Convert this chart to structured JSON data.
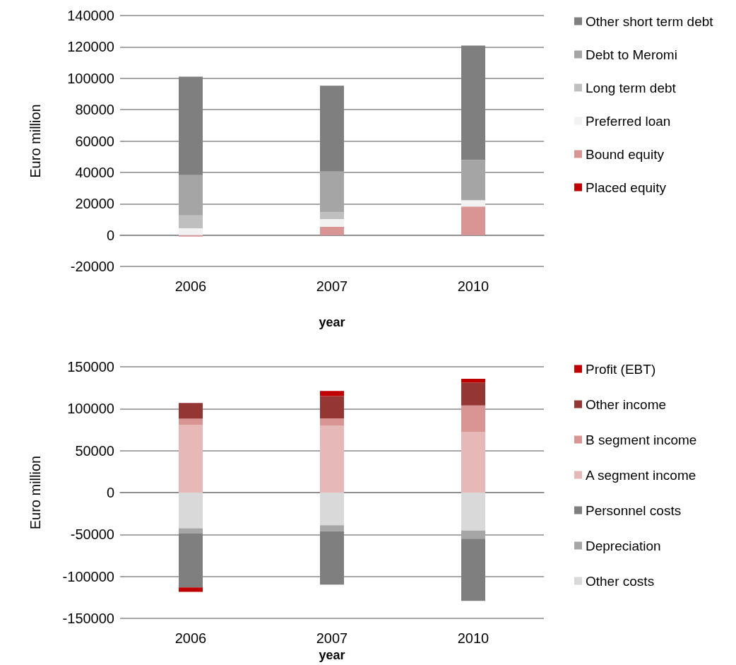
{
  "chart_data": [
    {
      "type": "bar",
      "stacked": true,
      "xlabel": "year",
      "ylabel": "Euro million",
      "categories": [
        "2006",
        "2007",
        "2010"
      ],
      "ylim": [
        -20000,
        140000
      ],
      "yticks": [
        -20000,
        0,
        20000,
        40000,
        60000,
        80000,
        100000,
        120000,
        140000
      ],
      "grid": "y",
      "legend": "right",
      "series": [
        {
          "name": "Placed equity",
          "color": "#c00000",
          "values": [
            0,
            0,
            0
          ]
        },
        {
          "name": "Bound equity",
          "color": "#d99594",
          "values": [
            -1000,
            5200,
            18200
          ]
        },
        {
          "name": "Preferred loan",
          "color": "#f2f2f2",
          "values": [
            4300,
            5000,
            4100
          ]
        },
        {
          "name": "Long term debt",
          "color": "#bfbfbf",
          "values": [
            8300,
            4400,
            0
          ]
        },
        {
          "name": "Debt to Meromi",
          "color": "#a5a5a5",
          "values": [
            25600,
            25900,
            25600
          ]
        },
        {
          "name": "Other short term debt",
          "color": "#7f7f7f",
          "values": [
            62800,
            54800,
            73000
          ]
        }
      ]
    },
    {
      "type": "bar",
      "stacked": true,
      "xlabel": "year",
      "ylabel": "Euro million",
      "categories": [
        "2006",
        "2007",
        "2010"
      ],
      "ylim": [
        -150000,
        150000
      ],
      "yticks": [
        -150000,
        -100000,
        -50000,
        0,
        50000,
        100000,
        150000
      ],
      "grid": "y",
      "legend": "right",
      "series": [
        {
          "name": "Other costs",
          "color": "#d9d9d9",
          "values": [
            -42500,
            -39000,
            -45200
          ]
        },
        {
          "name": "Depreciation",
          "color": "#a6a6a6",
          "values": [
            -5900,
            -7000,
            -9700
          ]
        },
        {
          "name": "Personnel costs",
          "color": "#7f7f7f",
          "values": [
            -64700,
            -63600,
            -74100
          ]
        },
        {
          "name": "A segment income",
          "color": "#e6b9b8",
          "values": [
            81000,
            80100,
            72500
          ]
        },
        {
          "name": "B segment income",
          "color": "#d99594",
          "values": [
            7100,
            8500,
            31400
          ]
        },
        {
          "name": "Other income",
          "color": "#943634",
          "values": [
            18800,
            26500,
            27400
          ]
        },
        {
          "name": "Profit (EBT)",
          "color": "#c00000",
          "values": [
            -5200,
            6100,
            4400
          ]
        }
      ]
    }
  ]
}
